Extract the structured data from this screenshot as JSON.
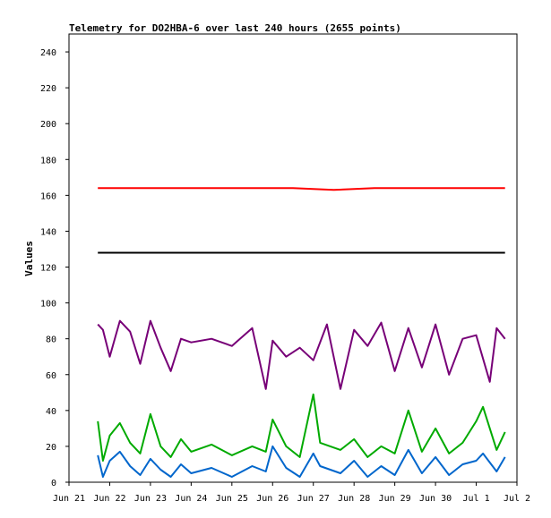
{
  "chart_data": {
    "type": "line",
    "title": "Telemetry for DO2HBA-6 over last 240 hours (2655 points)",
    "xlabel": "",
    "ylabel": "Values",
    "ylim": [
      0,
      250
    ],
    "xlim": [
      "2025-06-21",
      "2025-07-02"
    ],
    "x_ticks": [
      "Jun 21",
      "Jun 22",
      "Jun 23",
      "Jun 24",
      "Jun 25",
      "Jun 26",
      "Jun 27",
      "Jun 28",
      "Jun 29",
      "Jun 30",
      "Jul 1",
      "Jul 2"
    ],
    "y_ticks": [
      0,
      20,
      40,
      60,
      80,
      100,
      120,
      140,
      160,
      180,
      200,
      220,
      240
    ],
    "grid": false,
    "legend": "none",
    "series": [
      {
        "color": "#ff0000",
        "x": [
          "2025-06-21 17:00",
          "2025-06-22 12:00",
          "2025-06-23 12:00",
          "2025-06-24 12:00",
          "2025-06-25 12:00",
          "2025-06-26 12:00",
          "2025-06-27 12:00",
          "2025-06-28 12:00",
          "2025-06-29 12:00",
          "2025-06-30 12:00",
          "2025-07-01 12:00",
          "2025-07-01 17:00"
        ],
        "values": [
          164,
          164,
          164,
          164,
          164,
          164,
          163,
          164,
          164,
          164,
          164,
          164
        ]
      },
      {
        "color": "#000000",
        "x": [
          "2025-06-21 17:00",
          "2025-07-01 17:00"
        ],
        "values": [
          128,
          128
        ]
      },
      {
        "color": "#770077",
        "x": [
          "2025-06-21 17:00",
          "2025-06-21 20:00",
          "2025-06-22 00:00",
          "2025-06-22 06:00",
          "2025-06-22 12:00",
          "2025-06-22 18:00",
          "2025-06-23 00:00",
          "2025-06-23 06:00",
          "2025-06-23 12:00",
          "2025-06-23 18:00",
          "2025-06-24 00:00",
          "2025-06-24 12:00",
          "2025-06-25 00:00",
          "2025-06-25 12:00",
          "2025-06-25 20:00",
          "2025-06-26 00:00",
          "2025-06-26 08:00",
          "2025-06-26 16:00",
          "2025-06-27 00:00",
          "2025-06-27 08:00",
          "2025-06-27 16:00",
          "2025-06-28 00:00",
          "2025-06-28 08:00",
          "2025-06-28 16:00",
          "2025-06-29 00:00",
          "2025-06-29 08:00",
          "2025-06-29 16:00",
          "2025-06-30 00:00",
          "2025-06-30 08:00",
          "2025-06-30 16:00",
          "2025-07-01 00:00",
          "2025-07-01 08:00",
          "2025-07-01 12:00",
          "2025-07-01 17:00"
        ],
        "values": [
          88,
          85,
          70,
          90,
          84,
          66,
          90,
          75,
          62,
          80,
          78,
          80,
          76,
          86,
          52,
          79,
          70,
          75,
          68,
          88,
          52,
          85,
          76,
          89,
          62,
          86,
          64,
          88,
          60,
          80,
          82,
          56,
          86,
          80
        ]
      },
      {
        "color": "#00aa00",
        "x": [
          "2025-06-21 17:00",
          "2025-06-21 20:00",
          "2025-06-22 00:00",
          "2025-06-22 06:00",
          "2025-06-22 12:00",
          "2025-06-22 18:00",
          "2025-06-23 00:00",
          "2025-06-23 06:00",
          "2025-06-23 12:00",
          "2025-06-23 18:00",
          "2025-06-24 00:00",
          "2025-06-24 12:00",
          "2025-06-25 00:00",
          "2025-06-25 12:00",
          "2025-06-25 20:00",
          "2025-06-26 00:00",
          "2025-06-26 08:00",
          "2025-06-26 16:00",
          "2025-06-27 00:00",
          "2025-06-27 04:00",
          "2025-06-27 16:00",
          "2025-06-28 00:00",
          "2025-06-28 08:00",
          "2025-06-28 16:00",
          "2025-06-29 00:00",
          "2025-06-29 08:00",
          "2025-06-29 16:00",
          "2025-06-30 00:00",
          "2025-06-30 08:00",
          "2025-06-30 16:00",
          "2025-07-01 00:00",
          "2025-07-01 04:00",
          "2025-07-01 12:00",
          "2025-07-01 17:00"
        ],
        "values": [
          34,
          12,
          26,
          33,
          22,
          16,
          38,
          20,
          14,
          24,
          17,
          21,
          15,
          20,
          17,
          35,
          20,
          14,
          49,
          22,
          18,
          24,
          14,
          20,
          16,
          40,
          17,
          30,
          16,
          22,
          34,
          42,
          18,
          28
        ]
      },
      {
        "color": "#0066cc",
        "x": [
          "2025-06-21 17:00",
          "2025-06-21 20:00",
          "2025-06-22 00:00",
          "2025-06-22 06:00",
          "2025-06-22 12:00",
          "2025-06-22 18:00",
          "2025-06-23 00:00",
          "2025-06-23 06:00",
          "2025-06-23 12:00",
          "2025-06-23 18:00",
          "2025-06-24 00:00",
          "2025-06-24 12:00",
          "2025-06-25 00:00",
          "2025-06-25 12:00",
          "2025-06-25 20:00",
          "2025-06-26 00:00",
          "2025-06-26 08:00",
          "2025-06-26 16:00",
          "2025-06-27 00:00",
          "2025-06-27 04:00",
          "2025-06-27 16:00",
          "2025-06-28 00:00",
          "2025-06-28 08:00",
          "2025-06-28 16:00",
          "2025-06-29 00:00",
          "2025-06-29 08:00",
          "2025-06-29 16:00",
          "2025-06-30 00:00",
          "2025-06-30 08:00",
          "2025-06-30 16:00",
          "2025-07-01 00:00",
          "2025-07-01 04:00",
          "2025-07-01 12:00",
          "2025-07-01 17:00"
        ],
        "values": [
          15,
          3,
          12,
          17,
          9,
          4,
          13,
          7,
          3,
          10,
          5,
          8,
          3,
          9,
          6,
          20,
          8,
          3,
          16,
          9,
          5,
          12,
          3,
          9,
          4,
          18,
          5,
          14,
          4,
          10,
          12,
          16,
          6,
          14
        ]
      }
    ]
  }
}
